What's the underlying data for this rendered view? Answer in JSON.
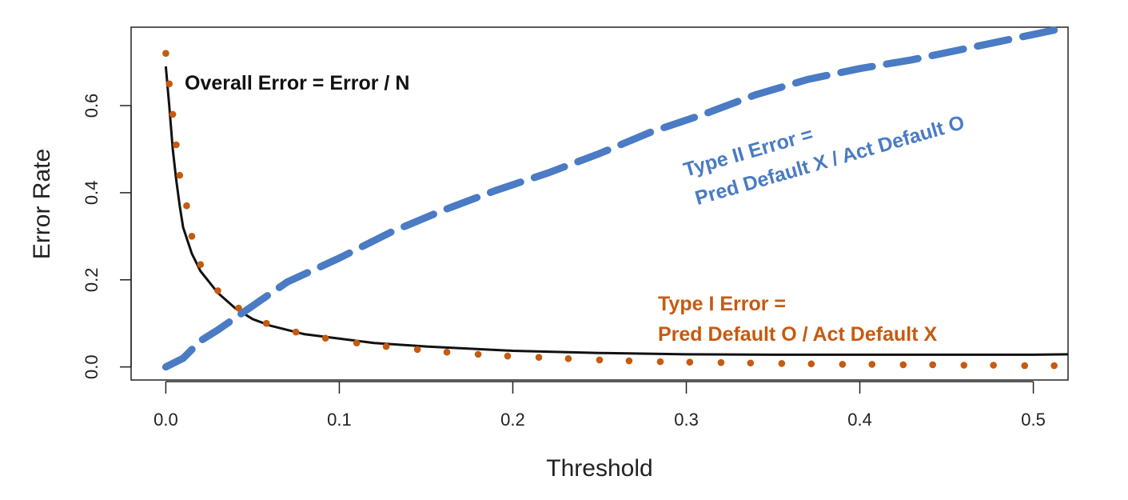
{
  "chart_data": {
    "type": "line",
    "title": "",
    "xlabel": "Threshold",
    "ylabel": "Error Rate",
    "xlim": [
      -0.02,
      0.52
    ],
    "ylim": [
      -0.03,
      0.78
    ],
    "xticks": [
      0.0,
      0.1,
      0.2,
      0.3,
      0.4,
      0.5
    ],
    "xtick_labels": [
      "0.0",
      "0.1",
      "0.2",
      "0.3",
      "0.4",
      "0.5"
    ],
    "yticks": [
      0.0,
      0.2,
      0.4,
      0.6
    ],
    "ytick_labels": [
      "0.0",
      "0.2",
      "0.4",
      "0.6"
    ],
    "grid": false,
    "series": [
      {
        "key": "overall",
        "style": "solid",
        "color": "#111111",
        "x": [
          0.0,
          0.002,
          0.004,
          0.006,
          0.008,
          0.01,
          0.015,
          0.02,
          0.03,
          0.04,
          0.05,
          0.06,
          0.08,
          0.1,
          0.12,
          0.15,
          0.2,
          0.25,
          0.3,
          0.35,
          0.4,
          0.45,
          0.5,
          0.52
        ],
        "y": [
          0.69,
          0.6,
          0.5,
          0.43,
          0.37,
          0.32,
          0.26,
          0.22,
          0.17,
          0.135,
          0.11,
          0.095,
          0.075,
          0.065,
          0.055,
          0.047,
          0.037,
          0.032,
          0.029,
          0.028,
          0.028,
          0.028,
          0.028,
          0.029
        ]
      },
      {
        "key": "type1",
        "style": "dotted",
        "color": "#c55a11",
        "x": [
          0.0,
          0.002,
          0.004,
          0.006,
          0.008,
          0.012,
          0.015,
          0.02,
          0.03,
          0.042,
          0.058,
          0.075,
          0.092,
          0.11,
          0.127,
          0.145,
          0.162,
          0.18,
          0.197,
          0.215,
          0.232,
          0.25,
          0.267,
          0.285,
          0.302,
          0.32,
          0.337,
          0.355,
          0.372,
          0.39,
          0.407,
          0.425,
          0.442,
          0.46,
          0.477,
          0.495,
          0.512
        ],
        "y": [
          0.72,
          0.65,
          0.58,
          0.51,
          0.44,
          0.37,
          0.3,
          0.235,
          0.175,
          0.135,
          0.1,
          0.08,
          0.066,
          0.055,
          0.047,
          0.04,
          0.034,
          0.029,
          0.025,
          0.022,
          0.019,
          0.016,
          0.014,
          0.012,
          0.011,
          0.01,
          0.009,
          0.008,
          0.007,
          0.006,
          0.006,
          0.005,
          0.005,
          0.004,
          0.004,
          0.003,
          0.003
        ]
      },
      {
        "key": "type2",
        "style": "dashed",
        "color": "#4a7bc4",
        "x": [
          0.0,
          0.01,
          0.02,
          0.03,
          0.05,
          0.07,
          0.1,
          0.13,
          0.16,
          0.19,
          0.22,
          0.25,
          0.28,
          0.31,
          0.34,
          0.37,
          0.4,
          0.43,
          0.46,
          0.49,
          0.52
        ],
        "y": [
          0.0,
          0.02,
          0.06,
          0.085,
          0.14,
          0.195,
          0.25,
          0.31,
          0.36,
          0.405,
          0.445,
          0.49,
          0.54,
          0.58,
          0.625,
          0.66,
          0.685,
          0.705,
          0.73,
          0.755,
          0.78
        ]
      }
    ],
    "annotations": {
      "overall": "Overall Error = Error / N",
      "type1_line1": "Type I Error =",
      "type1_line2": "Pred Default O / Act Default X",
      "type2_line1": "Type II Error =",
      "type2_line2": "Pred Default X / Act Default O"
    }
  }
}
